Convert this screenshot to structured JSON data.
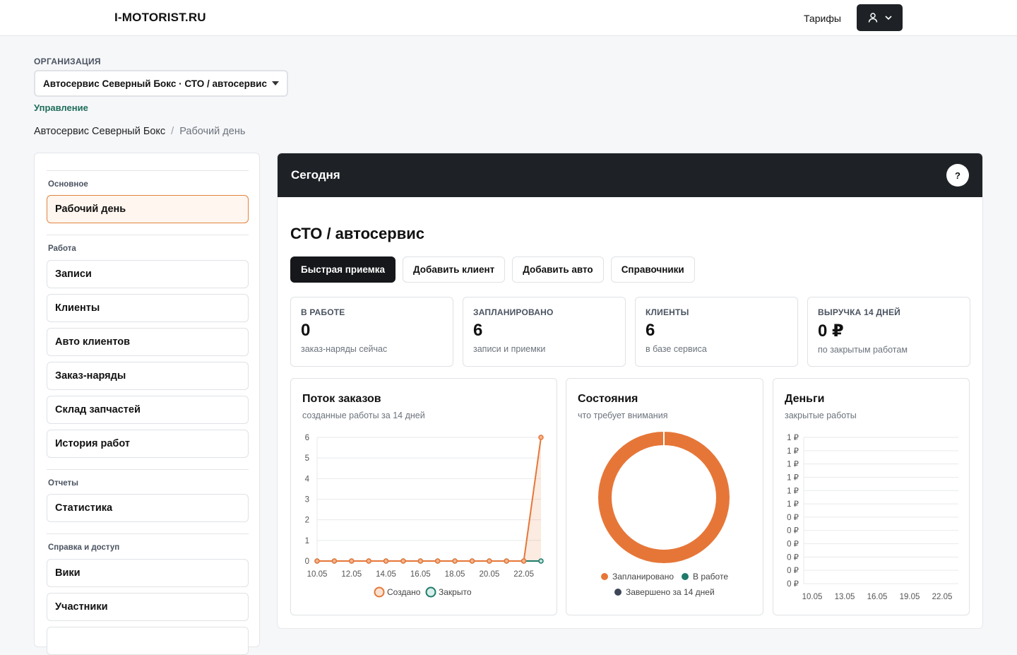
{
  "topbar": {
    "logo": "I-MOTORIST.RU",
    "tariffs": "Тарифы"
  },
  "org": {
    "label": "ОРГАНИЗАЦИЯ",
    "selected": "Автосервис Северный Бокс · СТО / автосервис",
    "manage": "Управление"
  },
  "breadcrumb": {
    "root": "Автосервис Северный Бокс",
    "separator": "/",
    "current": "Рабочий день"
  },
  "sidebar": {
    "sections": [
      {
        "title": "Основное",
        "items": [
          "Рабочий день"
        ]
      },
      {
        "title": "Работа",
        "items": [
          "Записи",
          "Клиенты",
          "Авто клиентов",
          "Заказ-наряды",
          "Склад запчастей",
          "История работ"
        ]
      },
      {
        "title": "Отчеты",
        "items": [
          "Статистика"
        ]
      },
      {
        "title": "Справка и доступ",
        "items": [
          "Вики",
          "Участники"
        ]
      }
    ],
    "active": "Рабочий день"
  },
  "main": {
    "title": "Сегодня",
    "help": "?",
    "subtitle": "СТО / автосервис",
    "actions": [
      "Быстрая приемка",
      "Добавить клиент",
      "Добавить авто",
      "Справочники"
    ],
    "kpis": [
      {
        "label": "В РАБОТЕ",
        "value": "0",
        "desc": "заказ-наряды сейчас"
      },
      {
        "label": "ЗАПЛАНИРОВАНО",
        "value": "6",
        "desc": "записи и приемки"
      },
      {
        "label": "КЛИЕНТЫ",
        "value": "6",
        "desc": "в базе сервиса"
      },
      {
        "label": "ВЫРУЧКА 14 ДНЕЙ",
        "value": "0 ₽",
        "desc": "по закрытым работам"
      }
    ]
  },
  "colors": {
    "accent": "#e67638",
    "teal": "#1f7a6b",
    "slate": "#3d4657",
    "dark": "#1e2227"
  },
  "chart_data": [
    {
      "type": "line",
      "title": "Поток заказов",
      "subtitle": "созданные работы за 14 дней",
      "x": [
        "10.05",
        "11.05",
        "12.05",
        "13.05",
        "14.05",
        "15.05",
        "16.05",
        "17.05",
        "18.05",
        "19.05",
        "20.05",
        "21.05",
        "22.05",
        "23.05"
      ],
      "x_tick_labels": [
        "10.05",
        "12.05",
        "14.05",
        "16.05",
        "18.05",
        "20.05",
        "22.05"
      ],
      "series": [
        {
          "name": "Создано",
          "values": [
            0,
            0,
            0,
            0,
            0,
            0,
            0,
            0,
            0,
            0,
            0,
            0,
            0,
            6
          ],
          "color": "#e67638"
        },
        {
          "name": "Закрыто",
          "values": [
            0,
            0,
            0,
            0,
            0,
            0,
            0,
            0,
            0,
            0,
            0,
            0,
            0,
            0
          ],
          "color": "#1f7a6b"
        }
      ],
      "y_ticks": [
        "0",
        "1",
        "2",
        "3",
        "4",
        "5",
        "6"
      ],
      "ylim": [
        0,
        6
      ],
      "grid": true,
      "legend": "bottom"
    },
    {
      "type": "pie",
      "title": "Состояния",
      "subtitle": "что требует внимания",
      "categories": [
        "Запланировано",
        "В работе",
        "Завершено за 14 дней"
      ],
      "values": [
        6,
        0,
        0
      ],
      "colors": [
        "#e67638",
        "#1f7a6b",
        "#3d4657"
      ],
      "legend": "bottom"
    },
    {
      "type": "bar",
      "title": "Деньги",
      "subtitle": "закрытые работы",
      "x_tick_labels": [
        "10.05",
        "13.05",
        "16.05",
        "19.05",
        "22.05"
      ],
      "y_ticks": [
        "0 ₽",
        "0 ₽",
        "0 ₽",
        "0 ₽",
        "0 ₽",
        "0 ₽",
        "1 ₽",
        "1 ₽",
        "1 ₽",
        "1 ₽",
        "1 ₽",
        "1 ₽"
      ],
      "values": [
        0,
        0,
        0,
        0,
        0,
        0,
        0,
        0,
        0,
        0,
        0,
        0,
        0,
        0
      ],
      "grid": true
    }
  ]
}
